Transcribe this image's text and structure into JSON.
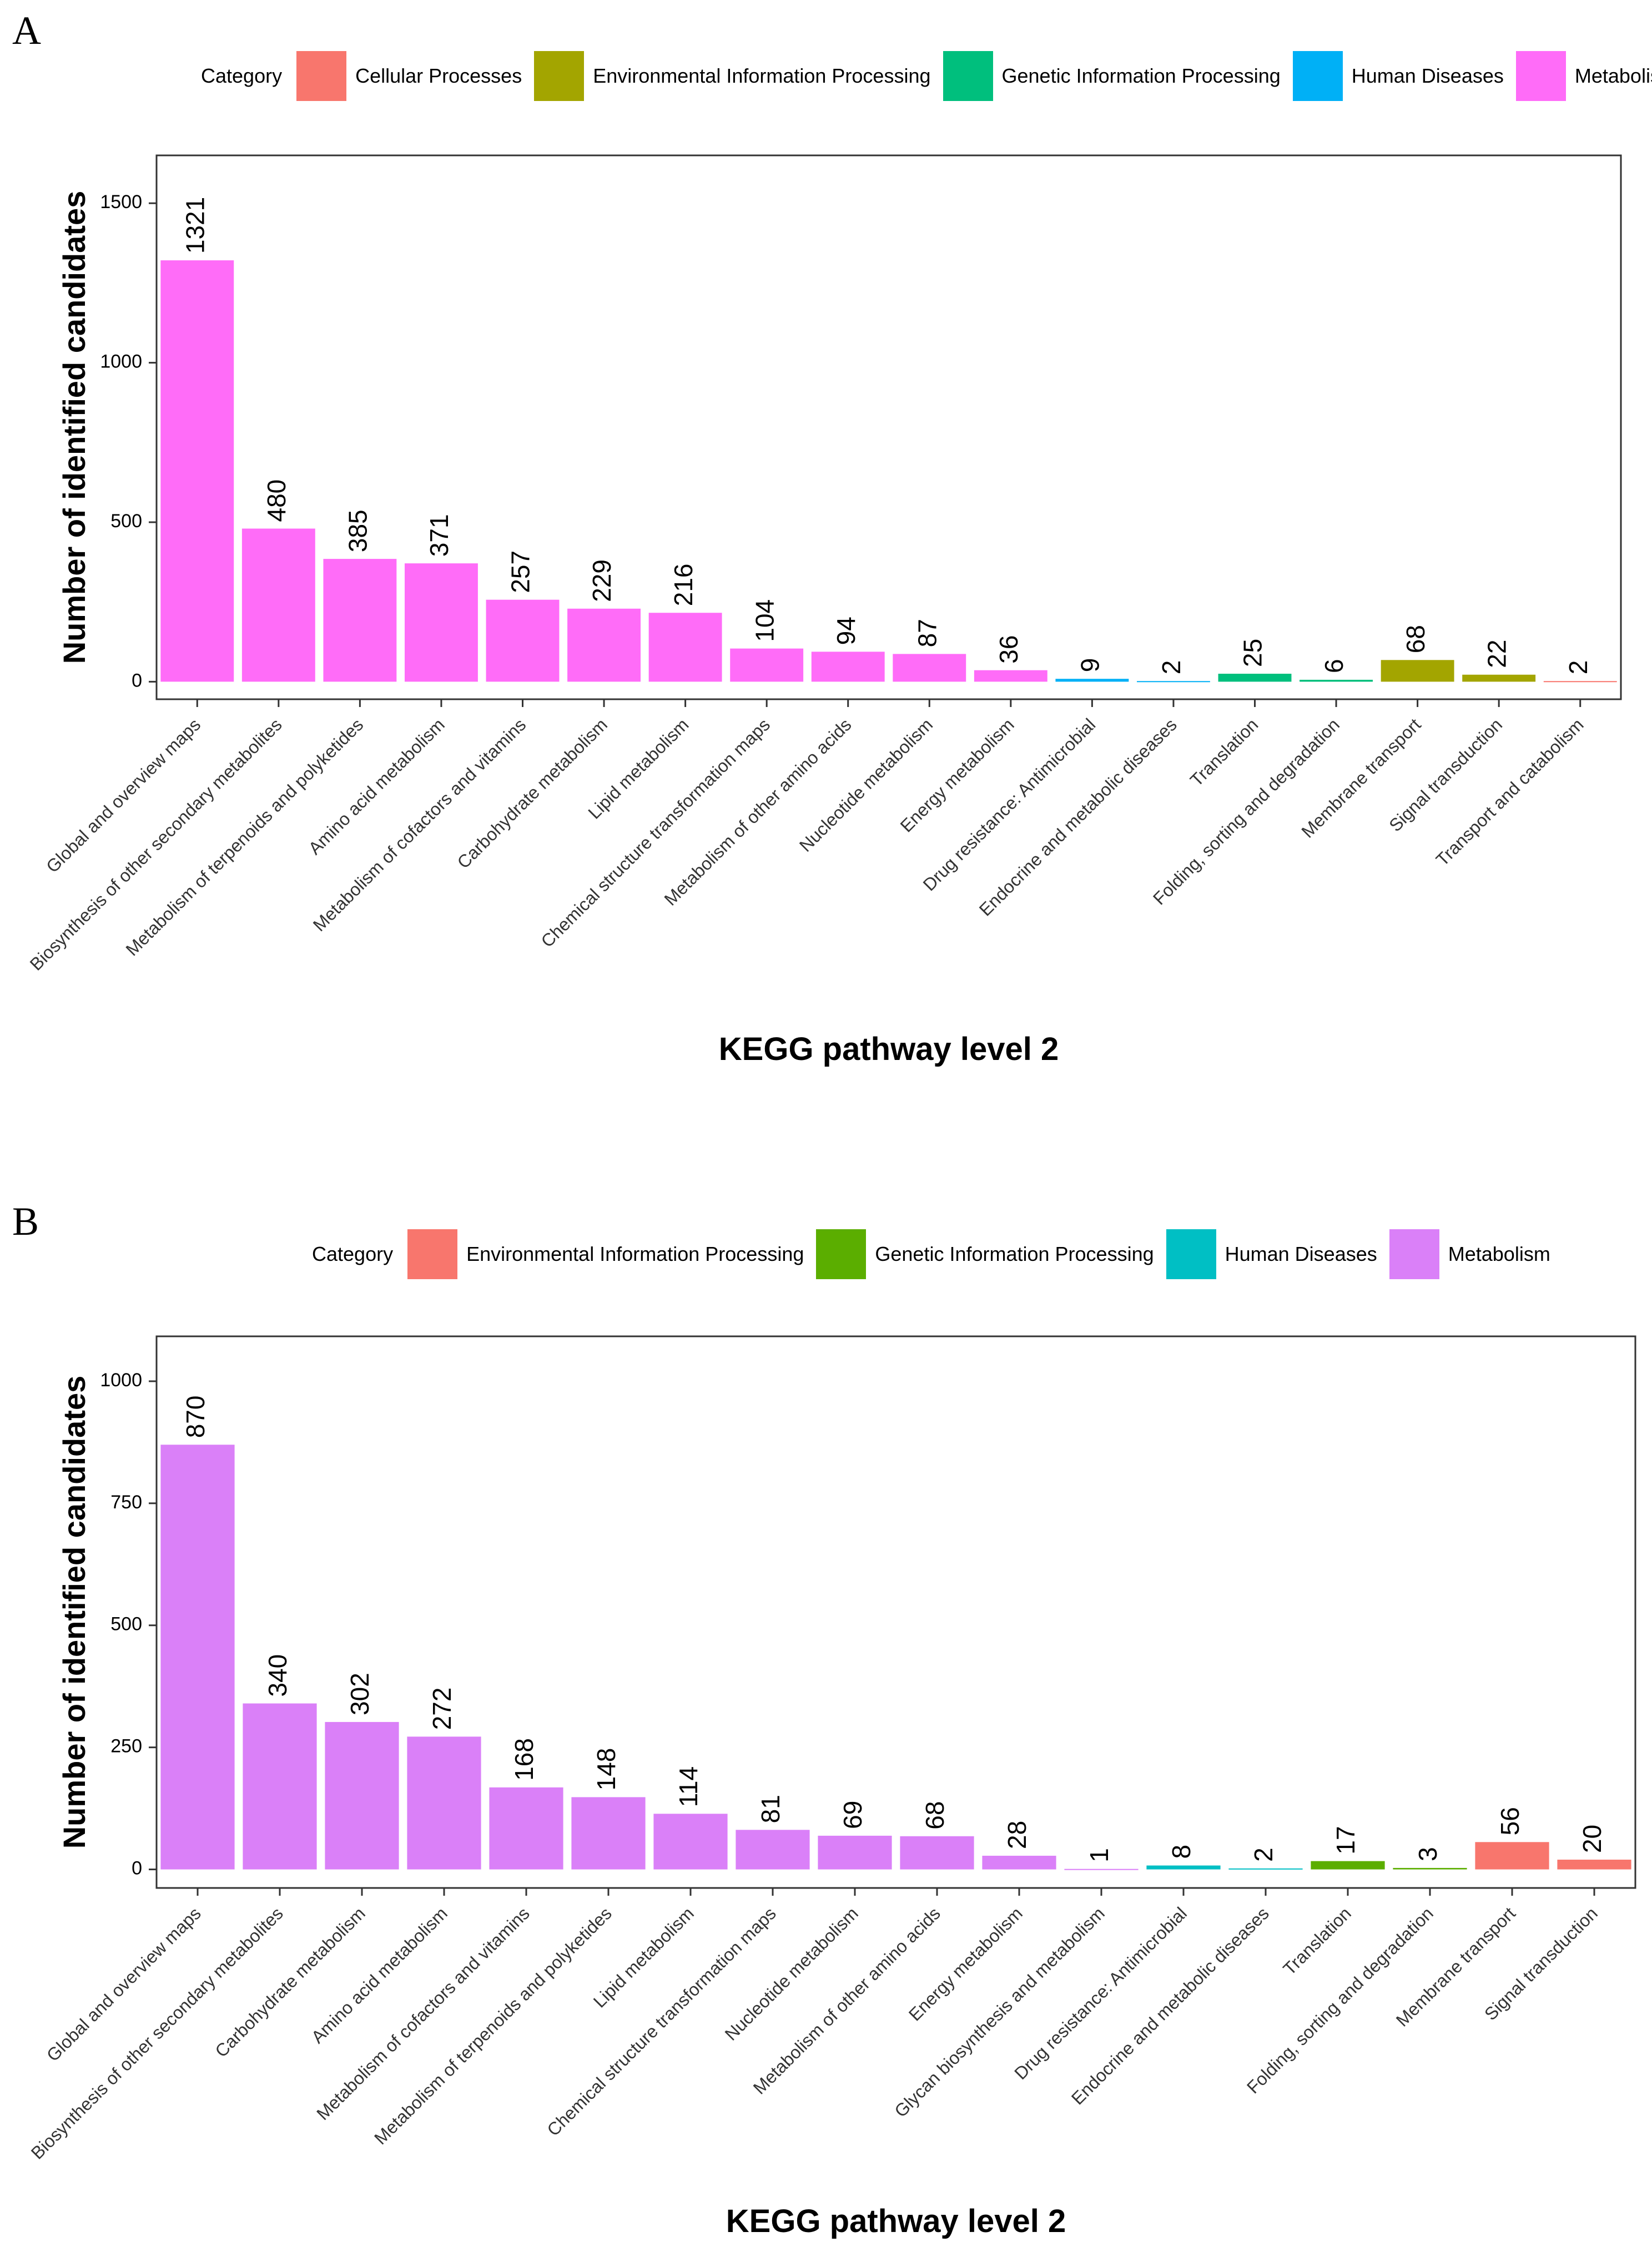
{
  "chart_data": [
    {
      "panel_label": "A",
      "type": "bar",
      "title": "",
      "xlabel": "KEGG pathway level 2",
      "ylabel": "Number of identified candidates",
      "ylim": [
        0,
        1650
      ],
      "yticks": [
        0,
        500,
        1000,
        1500
      ],
      "grid": false,
      "legend_position": "top",
      "legend_title": "Category",
      "legend": [
        {
          "name": "Cellular Processes",
          "color": "#F8766D"
        },
        {
          "name": "Environmental Information Processing",
          "color": "#A3A500"
        },
        {
          "name": "Genetic Information Processing",
          "color": "#00BF7D"
        },
        {
          "name": "Human Diseases",
          "color": "#00B0F6"
        },
        {
          "name": "Metabolism",
          "color": "#FF6CF8"
        }
      ],
      "categories": [
        "Global and overview maps",
        "Biosynthesis of other secondary metabolites",
        "Metabolism of terpenoids and polyketides",
        "Amino acid metabolism",
        "Metabolism of cofactors and vitamins",
        "Carbohydrate metabolism",
        "Lipid metabolism",
        "Chemical structure transformation maps",
        "Metabolism of other amino acids",
        "Nucleotide metabolism",
        "Energy metabolism",
        "Drug resistance: Antimicrobial",
        "Endocrine and metabolic diseases",
        "Translation",
        "Folding, sorting and degradation",
        "Membrane transport",
        "Signal transduction",
        "Transport and catabolism"
      ],
      "values": [
        1321,
        480,
        385,
        371,
        257,
        229,
        216,
        104,
        94,
        87,
        36,
        9,
        2,
        25,
        6,
        68,
        22,
        2
      ],
      "value_labels": [
        "1321",
        "480",
        "385",
        "371",
        "257",
        "229",
        "216",
        "104",
        "94",
        "87",
        "36",
        "9",
        "2",
        "25",
        "6",
        "68",
        "22",
        "2"
      ],
      "bar_categories": [
        "Metabolism",
        "Metabolism",
        "Metabolism",
        "Metabolism",
        "Metabolism",
        "Metabolism",
        "Metabolism",
        "Metabolism",
        "Metabolism",
        "Metabolism",
        "Metabolism",
        "Human Diseases",
        "Human Diseases",
        "Genetic Information Processing",
        "Genetic Information Processing",
        "Environmental Information Processing",
        "Environmental Information Processing",
        "Cellular Processes"
      ]
    },
    {
      "panel_label": "B",
      "type": "bar",
      "title": "",
      "xlabel": "KEGG pathway level 2",
      "ylabel": "Number of identified candidates",
      "ylim": [
        0,
        1000
      ],
      "yticks": [
        0,
        250,
        500,
        750,
        1000
      ],
      "grid": false,
      "legend_position": "top",
      "legend_title": "Category",
      "legend": [
        {
          "name": "Environmental Information Processing",
          "color": "#F8766D"
        },
        {
          "name": "Genetic Information Processing",
          "color": "#5BAE00"
        },
        {
          "name": "Human Diseases",
          "color": "#00BFC4"
        },
        {
          "name": "Metabolism",
          "color": "#DA80F8"
        }
      ],
      "categories": [
        "Global and overview maps",
        "Biosynthesis of other secondary metabolites",
        "Carbohydrate metabolism",
        "Amino acid metabolism",
        "Metabolism of cofactors and vitamins",
        "Metabolism of terpenoids and polyketides",
        "Lipid metabolism",
        "Chemical structure transformation maps",
        "Nucleotide metabolism",
        "Metabolism of other amino acids",
        "Energy metabolism",
        "Glycan biosynthesis and metabolism",
        "Drug resistance: Antimicrobial",
        "Endocrine and metabolic diseases",
        "Translation",
        "Folding, sorting and degradation",
        "Membrane transport",
        "Signal transduction"
      ],
      "values": [
        870,
        340,
        302,
        272,
        168,
        148,
        114,
        81,
        69,
        68,
        28,
        1,
        8,
        2,
        17,
        3,
        56,
        20
      ],
      "value_labels": [
        "870",
        "340",
        "302",
        "272",
        "168",
        "148",
        "114",
        "81",
        "69",
        "68",
        "28",
        "1",
        "8",
        "2",
        "17",
        "3",
        "56",
        "20"
      ],
      "bar_categories": [
        "Metabolism",
        "Metabolism",
        "Metabolism",
        "Metabolism",
        "Metabolism",
        "Metabolism",
        "Metabolism",
        "Metabolism",
        "Metabolism",
        "Metabolism",
        "Metabolism",
        "Metabolism",
        "Human Diseases",
        "Human Diseases",
        "Genetic Information Processing",
        "Genetic Information Processing",
        "Environmental Information Processing",
        "Environmental Information Processing"
      ]
    }
  ]
}
